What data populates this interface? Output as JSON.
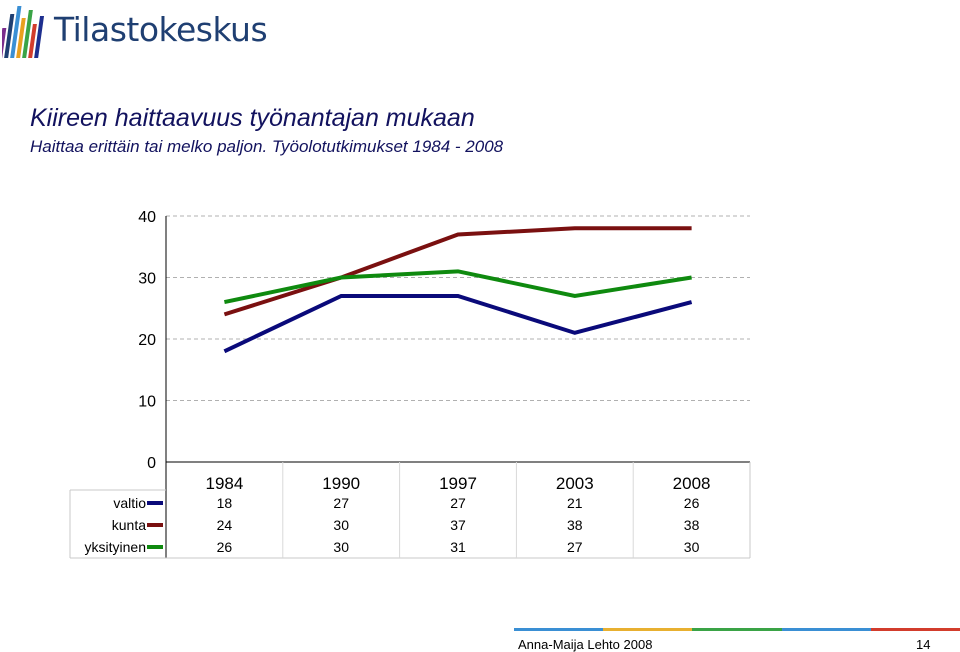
{
  "brand": {
    "name": "Tilastokeskus",
    "logo_bar_colors": [
      "#7a2d8c",
      "#1f3f72",
      "#3a8fd4",
      "#e8a020",
      "#3aa346",
      "#d23c2c",
      "#1e2f8f"
    ]
  },
  "slide": {
    "title": "Kiireen haittaavuus työnantajan mukaan",
    "subtitle": "Haittaa erittäin tai melko paljon. Työolotutkimukset 1984 - 2008"
  },
  "chart_data": {
    "type": "line",
    "categories": [
      "1984",
      "1990",
      "1997",
      "2003",
      "2008"
    ],
    "series": [
      {
        "name": "valtio",
        "values": [
          18,
          27,
          27,
          21,
          26
        ],
        "color": "#0a0a7a"
      },
      {
        "name": "kunta",
        "values": [
          24,
          30,
          37,
          38,
          38
        ],
        "color": "#7a1010"
      },
      {
        "name": "yksityinen",
        "values": [
          26,
          30,
          31,
          27,
          30
        ],
        "color": "#0f8a0f"
      }
    ],
    "y_ticks": [
      "0",
      "10",
      "20",
      "30",
      "40"
    ],
    "ylim": [
      0,
      40
    ],
    "grid": true,
    "data_table": true
  },
  "footer": {
    "author": "Anna-Maija Lehto 2008",
    "page": "14",
    "bar_colors": [
      "#3a8fd4",
      "#e8b030",
      "#3aa346",
      "#3a8fd4",
      "#d23c2c"
    ]
  }
}
